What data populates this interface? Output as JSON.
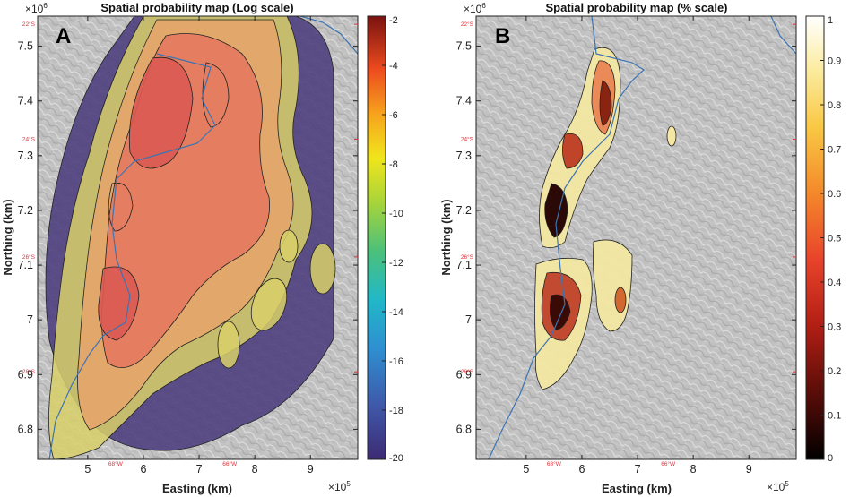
{
  "chart_data": [
    {
      "type": "heatmap",
      "panel_label": "A",
      "title": "Spatial probability map (Log scale)",
      "xlabel": "Easting (km)",
      "ylabel": "Northing (km)",
      "x_exponent": "×10",
      "x_exponent_power": "5",
      "y_exponent": "×10",
      "y_exponent_power": "6",
      "xticks": [
        "5",
        "6",
        "7",
        "8",
        "9"
      ],
      "xtick_values": [
        5,
        6,
        7,
        8,
        9
      ],
      "yticks": [
        "6.8",
        "6.9",
        "7",
        "7.1",
        "7.2",
        "7.3",
        "7.4",
        "7.5"
      ],
      "ytick_values": [
        6.8,
        6.9,
        7.0,
        7.1,
        7.2,
        7.3,
        7.4,
        7.5
      ],
      "xlim": [
        4.1,
        9.85
      ],
      "ylim": [
        6.745,
        7.555
      ],
      "lat_labels": [
        "22°S",
        "24°S",
        "26°S",
        "28°S"
      ],
      "lat_label_values": [
        7.54,
        7.33,
        7.115,
        6.905
      ],
      "lon_labels": [
        "68°W",
        "66°W"
      ],
      "lon_label_values": [
        5.5,
        7.55
      ],
      "colorbar": {
        "ticks": [
          "-2",
          "-4",
          "-6",
          "-8",
          "-10",
          "-12",
          "-14",
          "-16",
          "-18",
          "-20"
        ],
        "tick_values": [
          -2,
          -4,
          -6,
          -8,
          -10,
          -12,
          -14,
          -16,
          -18,
          -20
        ],
        "range": [
          -20,
          -2
        ],
        "colormap": "jet"
      }
    },
    {
      "type": "heatmap",
      "panel_label": "B",
      "title": "Spatial probability map (% scale)",
      "xlabel": "Easting (km)",
      "ylabel": "Northing (km)",
      "x_exponent": "×10",
      "x_exponent_power": "5",
      "y_exponent": "×10",
      "y_exponent_power": "6",
      "xticks": [
        "5",
        "6",
        "7",
        "8",
        "9"
      ],
      "xtick_values": [
        5,
        6,
        7,
        8,
        9
      ],
      "yticks": [
        "6.8",
        "6.9",
        "7",
        "7.1",
        "7.2",
        "7.3",
        "7.4",
        "7.5"
      ],
      "ytick_values": [
        6.8,
        6.9,
        7.0,
        7.1,
        7.2,
        7.3,
        7.4,
        7.5
      ],
      "xlim": [
        4.1,
        9.85
      ],
      "ylim": [
        6.745,
        7.555
      ],
      "lat_labels": [
        "22°S",
        "24°S",
        "26°S",
        "28°S"
      ],
      "lat_label_values": [
        7.54,
        7.33,
        7.115,
        6.905
      ],
      "lon_labels": [
        "68°W",
        "66°W"
      ],
      "lon_label_values": [
        5.5,
        7.55
      ],
      "colorbar": {
        "ticks": [
          "1",
          "0.9",
          "0.8",
          "0.7",
          "0.6",
          "0.5",
          "0.4",
          "0.3",
          "0.2",
          "0.1",
          "0"
        ],
        "tick_values": [
          1,
          0.9,
          0.8,
          0.7,
          0.6,
          0.5,
          0.4,
          0.3,
          0.2,
          0.1,
          0
        ],
        "range": [
          0,
          1
        ],
        "colormap": "hot"
      }
    }
  ]
}
